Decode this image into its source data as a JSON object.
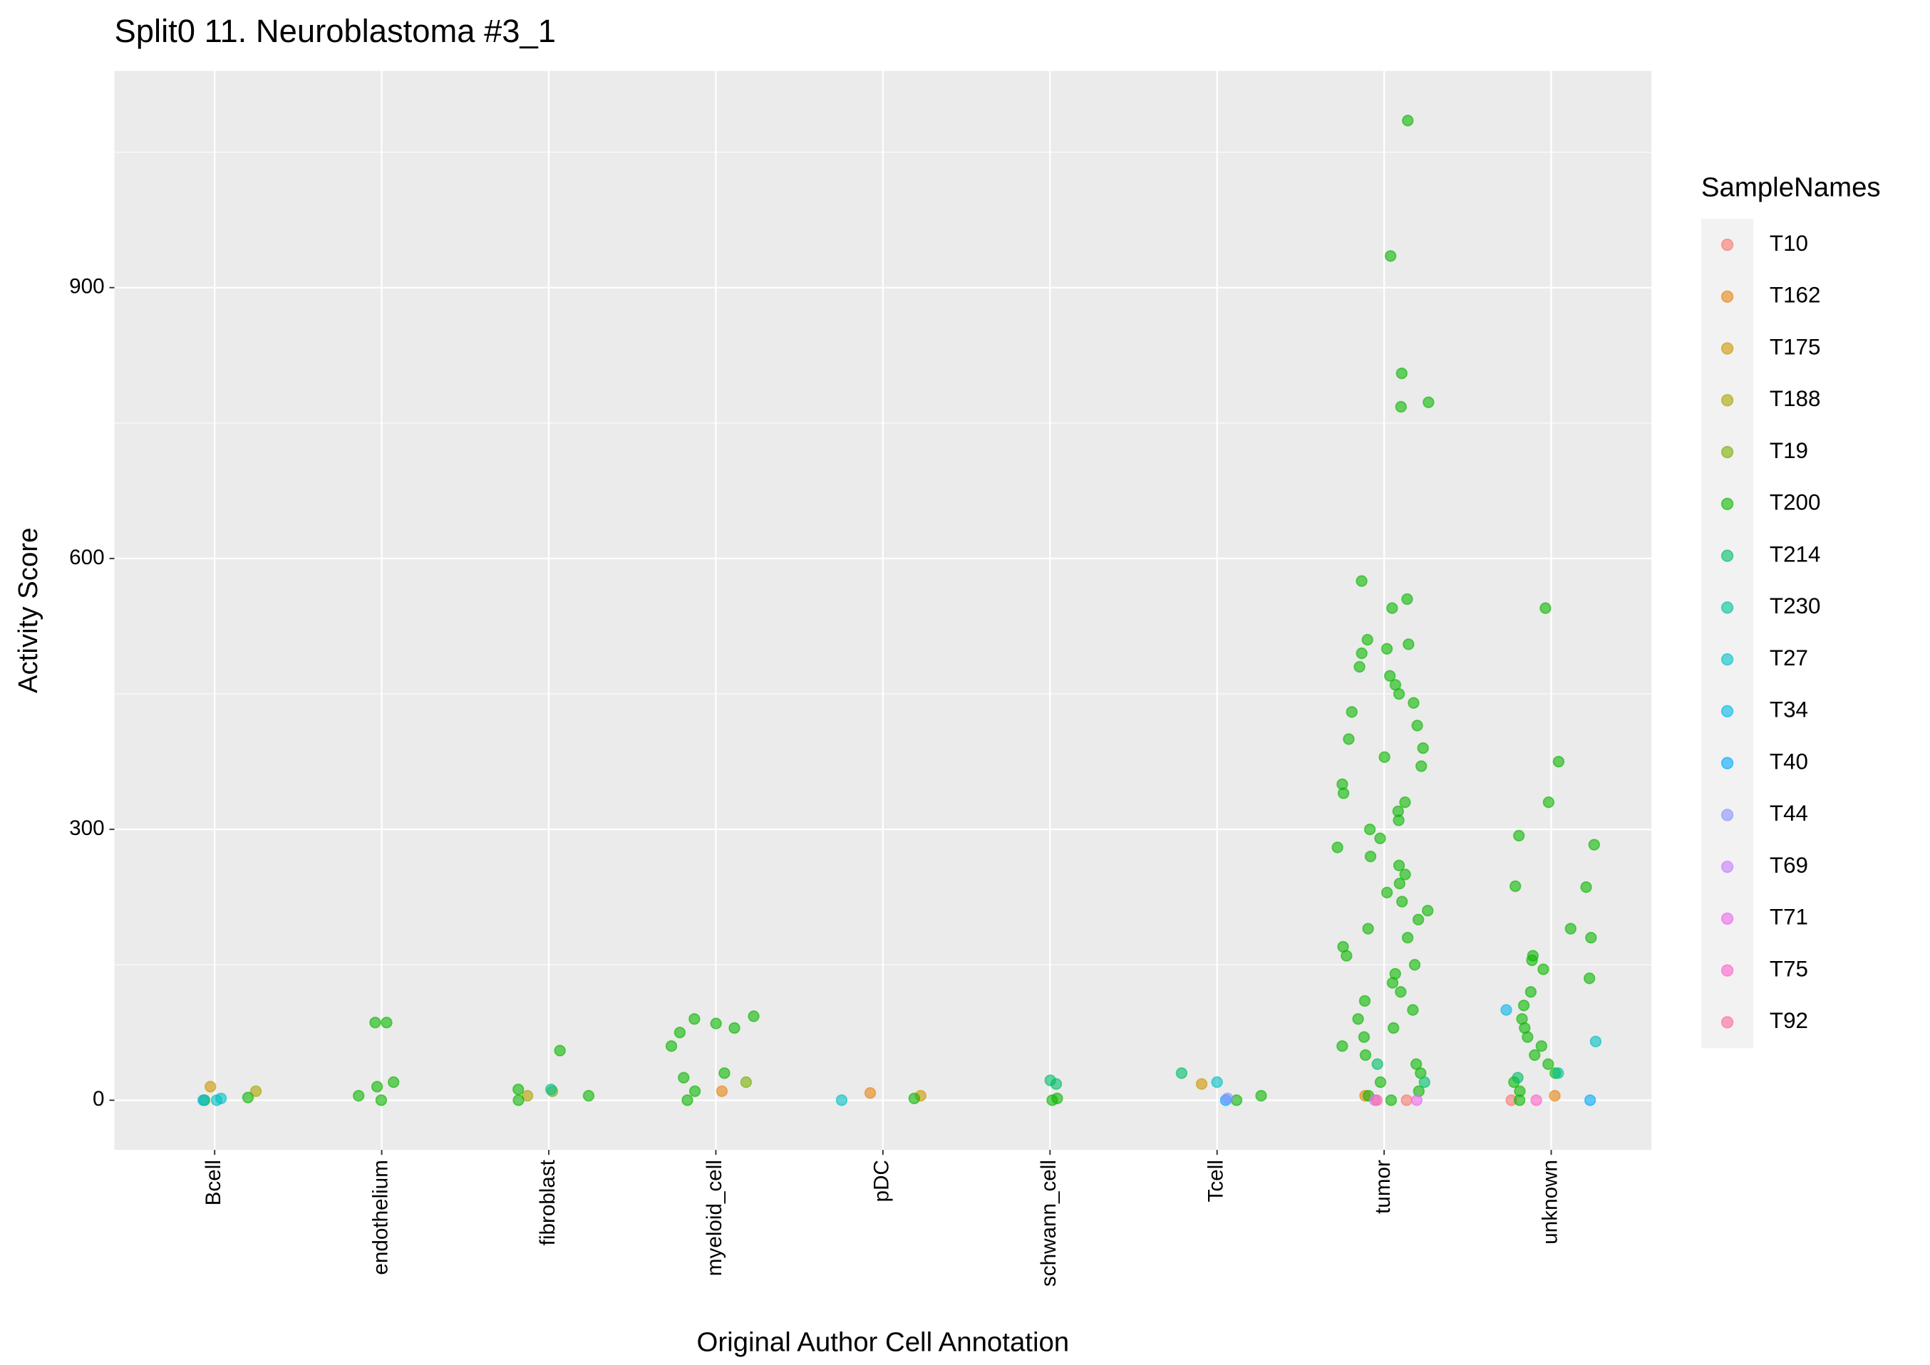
{
  "chart_data": {
    "type": "strip",
    "title": "Split0 11. Neuroblastoma #3_1",
    "xlabel": "Original Author Cell Annotation",
    "ylabel": "Activity Score",
    "legend_title": "SampleNames",
    "legend": "right",
    "grid": true,
    "categories": [
      "Bcell",
      "endothelium",
      "fibroblast",
      "myeloid_cell",
      "pDC",
      "schwann_cell",
      "Tcell",
      "tumor",
      "unknown"
    ],
    "ylim": [
      -55,
      1140
    ],
    "yticks": [
      0,
      300,
      600,
      900
    ],
    "series": [
      {
        "name": "T10",
        "color": "#F8766D",
        "x": [
          "tumor",
          "unknown"
        ],
        "values": [
          0,
          0
        ]
      },
      {
        "name": "T162",
        "color": "#E68613",
        "x": [
          "myeloid_cell",
          "pDC",
          "tumor",
          "unknown"
        ],
        "values": [
          10,
          8,
          5,
          5
        ]
      },
      {
        "name": "T175",
        "color": "#CD9600",
        "x": [
          "Bcell",
          "Tcell",
          "pDC"
        ],
        "values": [
          15,
          18,
          5
        ]
      },
      {
        "name": "T188",
        "color": "#ABA300",
        "x": [
          "fibroblast",
          "Bcell"
        ],
        "values": [
          5,
          10
        ]
      },
      {
        "name": "T19",
        "color": "#7CAE00",
        "x": [
          "myeloid_cell",
          "fibroblast"
        ],
        "values": [
          20,
          10
        ]
      },
      {
        "name": "T200",
        "color": "#0CB702",
        "x": [
          "tumor",
          "tumor",
          "tumor",
          "tumor",
          "tumor",
          "tumor",
          "tumor",
          "tumor",
          "tumor",
          "tumor",
          "tumor",
          "tumor",
          "tumor",
          "tumor",
          "tumor",
          "tumor",
          "tumor",
          "tumor",
          "tumor",
          "tumor",
          "tumor",
          "tumor",
          "tumor",
          "tumor",
          "tumor",
          "tumor",
          "tumor",
          "tumor",
          "tumor",
          "tumor",
          "tumor",
          "tumor",
          "tumor",
          "tumor",
          "tumor",
          "tumor",
          "tumor",
          "tumor",
          "tumor",
          "tumor",
          "tumor",
          "tumor",
          "tumor",
          "tumor",
          "tumor",
          "tumor",
          "tumor",
          "tumor",
          "tumor",
          "tumor",
          "tumor",
          "tumor",
          "tumor",
          "tumor",
          "tumor",
          "tumor",
          "tumor",
          "tumor",
          "tumor",
          "tumor",
          "unknown",
          "unknown",
          "unknown",
          "unknown",
          "unknown",
          "unknown",
          "unknown",
          "unknown",
          "unknown",
          "unknown",
          "unknown",
          "unknown",
          "unknown",
          "unknown",
          "unknown",
          "unknown",
          "unknown",
          "unknown",
          "unknown",
          "unknown",
          "unknown",
          "unknown",
          "unknown",
          "unknown",
          "unknown",
          "endothelium",
          "endothelium",
          "endothelium",
          "endothelium",
          "endothelium",
          "endothelium",
          "myeloid_cell",
          "myeloid_cell",
          "myeloid_cell",
          "myeloid_cell",
          "myeloid_cell",
          "myeloid_cell",
          "myeloid_cell",
          "myeloid_cell",
          "myeloid_cell",
          "myeloid_cell",
          "fibroblast",
          "fibroblast",
          "fibroblast",
          "fibroblast",
          "schwann_cell",
          "schwann_cell",
          "Tcell",
          "Tcell",
          "Bcell",
          "Bcell",
          "pDC"
        ],
        "values": [
          1085,
          935,
          805,
          773,
          768,
          575,
          555,
          545,
          510,
          505,
          500,
          495,
          480,
          470,
          460,
          450,
          440,
          430,
          415,
          400,
          390,
          380,
          370,
          350,
          340,
          330,
          320,
          310,
          300,
          290,
          280,
          270,
          260,
          250,
          240,
          230,
          220,
          210,
          200,
          190,
          180,
          170,
          160,
          150,
          140,
          130,
          120,
          110,
          100,
          90,
          80,
          70,
          60,
          50,
          40,
          30,
          20,
          10,
          5,
          0,
          545,
          375,
          330,
          293,
          283,
          237,
          236,
          190,
          180,
          160,
          155,
          145,
          135,
          120,
          105,
          90,
          80,
          70,
          60,
          50,
          40,
          30,
          20,
          10,
          0,
          86,
          86,
          20,
          15,
          5,
          0,
          93,
          90,
          85,
          80,
          75,
          60,
          30,
          25,
          10,
          0,
          55,
          12,
          5,
          0,
          2,
          0,
          5,
          0,
          3,
          0,
          2
        ]
      },
      {
        "name": "T214",
        "color": "#00BE67",
        "x": [
          "schwann_cell",
          "schwann_cell",
          "Tcell",
          "tumor",
          "tumor",
          "unknown"
        ],
        "values": [
          22,
          18,
          30,
          40,
          20,
          25
        ]
      },
      {
        "name": "T230",
        "color": "#00C19A",
        "x": [
          "fibroblast",
          "unknown"
        ],
        "values": [
          12,
          30
        ]
      },
      {
        "name": "T27",
        "color": "#00BFC4",
        "x": [
          "Bcell",
          "Bcell",
          "pDC",
          "Tcell",
          "unknown"
        ],
        "values": [
          0,
          2,
          0,
          20,
          65
        ]
      },
      {
        "name": "T34",
        "color": "#00B8E7",
        "x": [
          "unknown",
          "Bcell"
        ],
        "values": [
          100,
          0
        ]
      },
      {
        "name": "T40",
        "color": "#00A9FF",
        "x": [
          "Tcell",
          "unknown"
        ],
        "values": [
          0,
          0
        ]
      },
      {
        "name": "T44",
        "color": "#8494FF",
        "x": [
          "Tcell"
        ],
        "values": [
          2
        ]
      },
      {
        "name": "T69",
        "color": "#C77CFF",
        "x": [
          "tumor"
        ],
        "values": [
          0
        ]
      },
      {
        "name": "T71",
        "color": "#ED68ED",
        "x": [
          "tumor"
        ],
        "values": [
          0
        ]
      },
      {
        "name": "T75",
        "color": "#FF61CC",
        "x": [
          "unknown"
        ],
        "values": [
          0
        ]
      },
      {
        "name": "T92",
        "color": "#FF68A1",
        "x": [
          "tumor"
        ],
        "values": [
          0
        ]
      }
    ]
  }
}
